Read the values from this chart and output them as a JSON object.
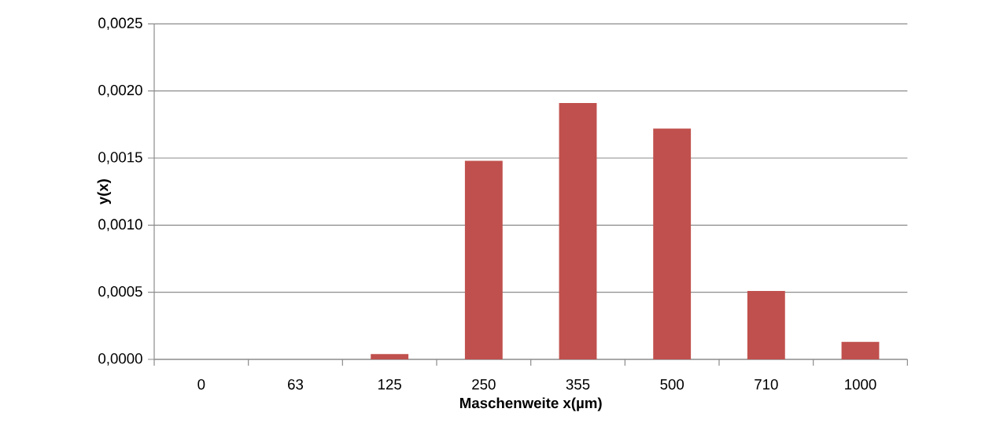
{
  "chart_data": {
    "type": "bar",
    "xlabel": "Maschenweite x(µm)",
    "ylabel": "y(x)",
    "categories": [
      "0",
      "63",
      "125",
      "250",
      "355",
      "500",
      "710",
      "1000"
    ],
    "values": [
      0,
      0,
      4e-05,
      0.00148,
      0.00191,
      0.00172,
      0.00051,
      0.00013
    ],
    "color": "#c0504d",
    "ylim": [
      0,
      0.0025
    ],
    "yticks": [
      {
        "value": 0,
        "label": "0,0000"
      },
      {
        "value": 0.0005,
        "label": "0,0005"
      },
      {
        "value": 0.001,
        "label": "0,0010"
      },
      {
        "value": 0.0015,
        "label": "0,0015"
      },
      {
        "value": 0.002,
        "label": "0,0020"
      },
      {
        "value": 0.0025,
        "label": "0,0025"
      }
    ],
    "grid": "y"
  }
}
